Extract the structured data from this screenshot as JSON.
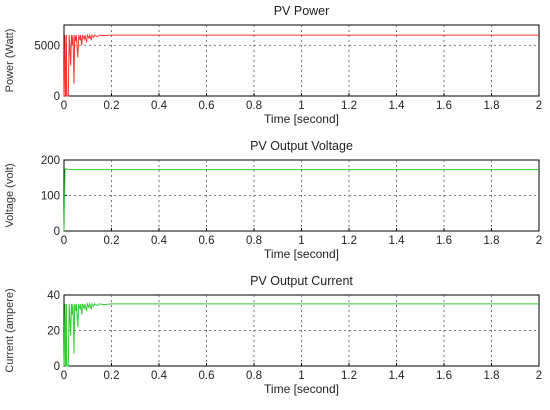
{
  "chart_data": [
    {
      "type": "line",
      "title": "PV  Power",
      "xlabel": "Time [second]",
      "ylabel": "Power (Watt)",
      "xlim": [
        0,
        2
      ],
      "ylim": [
        0,
        7000
      ],
      "xticks": [
        "0",
        "0.2",
        "0.4",
        "0.6",
        "0.8",
        "1",
        "1.2",
        "1.4",
        "1.6",
        "1.8",
        "2"
      ],
      "yticks": [
        "0",
        "5000"
      ],
      "grid": true,
      "color": "#ff3333",
      "series": [
        {
          "x": [
            0,
            0.004,
            0.006,
            0.008,
            0.01,
            0.012,
            0.018,
            0.022,
            0.028,
            0.031,
            0.035,
            0.038,
            0.042,
            0.045,
            0.05,
            0.052,
            0.058,
            0.062,
            0.068,
            0.07,
            0.075,
            0.078,
            0.085,
            0.088,
            0.095,
            0.098,
            0.105,
            0.108,
            0.115,
            0.118,
            0.125,
            0.13,
            0.14,
            0.15,
            0.17,
            0.2,
            2
          ],
          "y": [
            0,
            6000,
            0,
            0,
            6000,
            0,
            0,
            6000,
            3000,
            6000,
            5000,
            6000,
            1200,
            6000,
            5400,
            6000,
            3800,
            6000,
            5500,
            6000,
            5000,
            6000,
            5600,
            6000,
            5300,
            6000,
            5700,
            6000,
            5500,
            6000,
            5800,
            6000,
            5850,
            6000,
            5950,
            6000,
            6000
          ]
        }
      ]
    },
    {
      "type": "line",
      "title": "PV Output Voltage",
      "xlabel": "Time [second]",
      "ylabel": "Voltage (volt)",
      "xlim": [
        0,
        2
      ],
      "ylim": [
        0,
        200
      ],
      "xticks": [
        "0",
        "0.2",
        "0.4",
        "0.6",
        "0.8",
        "1",
        "1.2",
        "1.4",
        "1.6",
        "1.8",
        "2"
      ],
      "yticks": [
        "0",
        "100",
        "200"
      ],
      "grid": true,
      "color": "#33cc33",
      "series": [
        {
          "x": [
            0,
            0.004,
            0.008,
            0.012,
            0.02,
            0.03,
            2
          ],
          "y": [
            0,
            172,
            176,
            174,
            173,
            173,
            173
          ]
        }
      ]
    },
    {
      "type": "line",
      "title": "PV Output Current",
      "xlabel": "Time [second]",
      "ylabel": "Current (ampere)",
      "xlim": [
        0,
        2
      ],
      "ylim": [
        0,
        40
      ],
      "xticks": [
        "0",
        "0.2",
        "0.4",
        "0.6",
        "0.8",
        "1",
        "1.2",
        "1.4",
        "1.6",
        "1.8",
        "2"
      ],
      "yticks": [
        "0",
        "20",
        "40"
      ],
      "grid": true,
      "color": "#33cc33",
      "series": [
        {
          "x": [
            0,
            0.004,
            0.006,
            0.008,
            0.01,
            0.012,
            0.018,
            0.022,
            0.028,
            0.031,
            0.035,
            0.038,
            0.042,
            0.045,
            0.05,
            0.052,
            0.058,
            0.062,
            0.068,
            0.07,
            0.075,
            0.078,
            0.085,
            0.088,
            0.095,
            0.098,
            0.105,
            0.108,
            0.115,
            0.118,
            0.125,
            0.13,
            0.14,
            0.15,
            0.17,
            0.2,
            2
          ],
          "y": [
            0,
            35,
            0,
            0,
            35,
            0,
            0,
            35,
            17,
            35,
            29,
            35,
            7,
            35,
            31,
            35,
            22,
            35,
            32,
            35,
            29,
            35,
            32.5,
            35,
            31,
            35,
            33,
            35,
            32,
            35,
            33.8,
            35,
            34,
            35,
            34.6,
            35,
            35
          ]
        }
      ]
    }
  ]
}
